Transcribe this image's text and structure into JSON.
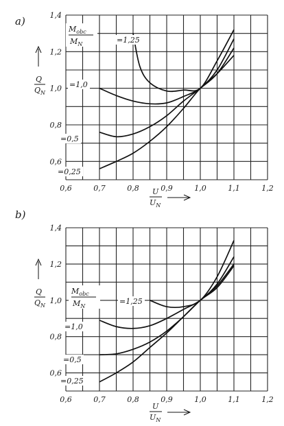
{
  "chart_data": [
    {
      "type": "line",
      "panel_label": "a)",
      "xlabel": {
        "num": "U",
        "den": "U",
        "den_sub": "N"
      },
      "ylabel": {
        "num": "Q",
        "den": "Q",
        "den_sub": "N"
      },
      "legend_title": {
        "num": "M",
        "num_sub": "obc",
        "den": "M",
        "den_sub": "N"
      },
      "xlim": [
        0.6,
        1.2
      ],
      "ylim": [
        0.5,
        1.4
      ],
      "x_ticks": [
        0.6,
        0.7,
        0.8,
        0.9,
        1.0,
        1.1,
        1.2
      ],
      "x_tick_labels": [
        "0,6",
        "0,7",
        "0,8",
        "0,9",
        "1,0",
        "1,1",
        "1,2"
      ],
      "y_ticks": [
        0.6,
        0.8,
        1.0,
        1.2,
        1.4
      ],
      "y_tick_labels": [
        "0,6",
        "0,8",
        "1,0",
        "1,2",
        "1,4"
      ],
      "grid": true,
      "series": [
        {
          "label": "=1,25",
          "x": [
            0.8,
            0.82,
            0.85,
            0.9,
            0.95,
            1.0,
            1.05,
            1.1
          ],
          "y": [
            1.3,
            1.12,
            1.03,
            0.985,
            0.99,
            1.0,
            1.15,
            1.32
          ]
        },
        {
          "label": "=1,0",
          "x": [
            0.7,
            0.75,
            0.8,
            0.85,
            0.9,
            0.95,
            1.0,
            1.05,
            1.1
          ],
          "y": [
            1.0,
            0.96,
            0.93,
            0.915,
            0.92,
            0.955,
            1.0,
            1.1,
            1.27
          ]
        },
        {
          "label": "=0,5",
          "x": [
            0.7,
            0.75,
            0.8,
            0.85,
            0.9,
            0.95,
            1.0,
            1.05,
            1.1
          ],
          "y": [
            0.76,
            0.735,
            0.75,
            0.79,
            0.85,
            0.93,
            1.0,
            1.08,
            1.22
          ]
        },
        {
          "label": "=0,25",
          "x": [
            0.7,
            0.75,
            0.8,
            0.85,
            0.9,
            0.95,
            1.0,
            1.05,
            1.1
          ],
          "y": [
            0.56,
            0.6,
            0.645,
            0.71,
            0.79,
            0.89,
            1.0,
            1.08,
            1.18
          ]
        }
      ]
    },
    {
      "type": "line",
      "panel_label": "b)",
      "xlabel": {
        "num": "U",
        "den": "U",
        "den_sub": "N"
      },
      "ylabel": {
        "num": "Q",
        "den": "Q",
        "den_sub": "N"
      },
      "legend_title": {
        "num": "M",
        "num_sub": "obc",
        "den": "M",
        "den_sub": "N"
      },
      "xlim": [
        0.6,
        1.2
      ],
      "ylim": [
        0.5,
        1.4
      ],
      "x_ticks": [
        0.6,
        0.7,
        0.8,
        0.9,
        1.0,
        1.1,
        1.2
      ],
      "x_tick_labels": [
        "0,6",
        "0,7",
        "0,8",
        "0,9",
        "1,0",
        "1,1",
        "1,2"
      ],
      "y_ticks": [
        0.6,
        0.8,
        1.0,
        1.2,
        1.4
      ],
      "y_tick_labels": [
        "0,6",
        "0,8",
        "1,0",
        "1,2",
        "1,4"
      ],
      "grid": true,
      "series": [
        {
          "label": "=1,25",
          "x": [
            0.85,
            0.9,
            0.95,
            1.0,
            1.05,
            1.1
          ],
          "y": [
            1.0,
            0.965,
            0.965,
            1.0,
            1.13,
            1.33
          ]
        },
        {
          "label": "=1,0",
          "x": [
            0.7,
            0.75,
            0.8,
            0.85,
            0.9,
            0.95,
            1.0,
            1.05,
            1.1
          ],
          "y": [
            0.89,
            0.855,
            0.845,
            0.86,
            0.9,
            0.95,
            1.0,
            1.09,
            1.24
          ]
        },
        {
          "label": "=0,5",
          "x": [
            0.7,
            0.75,
            0.8,
            0.85,
            0.9,
            0.95,
            1.0,
            1.05,
            1.1
          ],
          "y": [
            0.7,
            0.705,
            0.73,
            0.77,
            0.83,
            0.91,
            1.0,
            1.08,
            1.2
          ]
        },
        {
          "label": "=0,25",
          "x": [
            0.7,
            0.75,
            0.8,
            0.85,
            0.9,
            0.95,
            1.0,
            1.05,
            1.1
          ],
          "y": [
            0.55,
            0.6,
            0.66,
            0.74,
            0.82,
            0.91,
            1.0,
            1.07,
            1.19
          ]
        }
      ]
    }
  ]
}
